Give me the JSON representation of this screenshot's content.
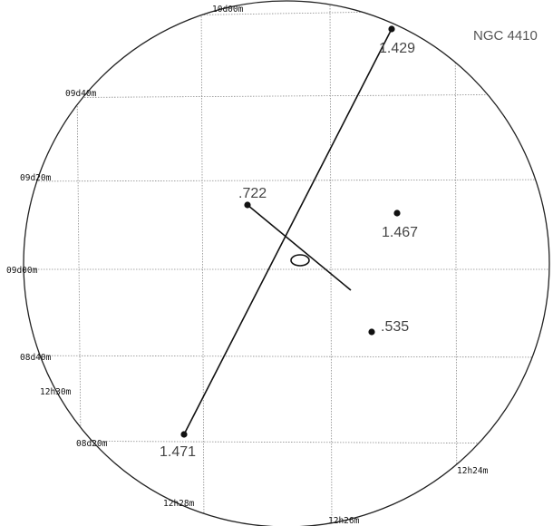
{
  "title": "NGC 4410",
  "dec_labels": [
    "10d00m",
    "09d40m",
    "09d20m",
    "09d00m",
    "08d40m",
    "08d20m"
  ],
  "ra_labels": [
    "12h30m",
    "12h28m",
    "12h26m",
    "12h24m"
  ],
  "objects": [
    {
      "label": "1.429"
    },
    {
      "label": ".722"
    },
    {
      "label": "1.467"
    },
    {
      "label": ".535"
    },
    {
      "label": "1.471"
    }
  ]
}
